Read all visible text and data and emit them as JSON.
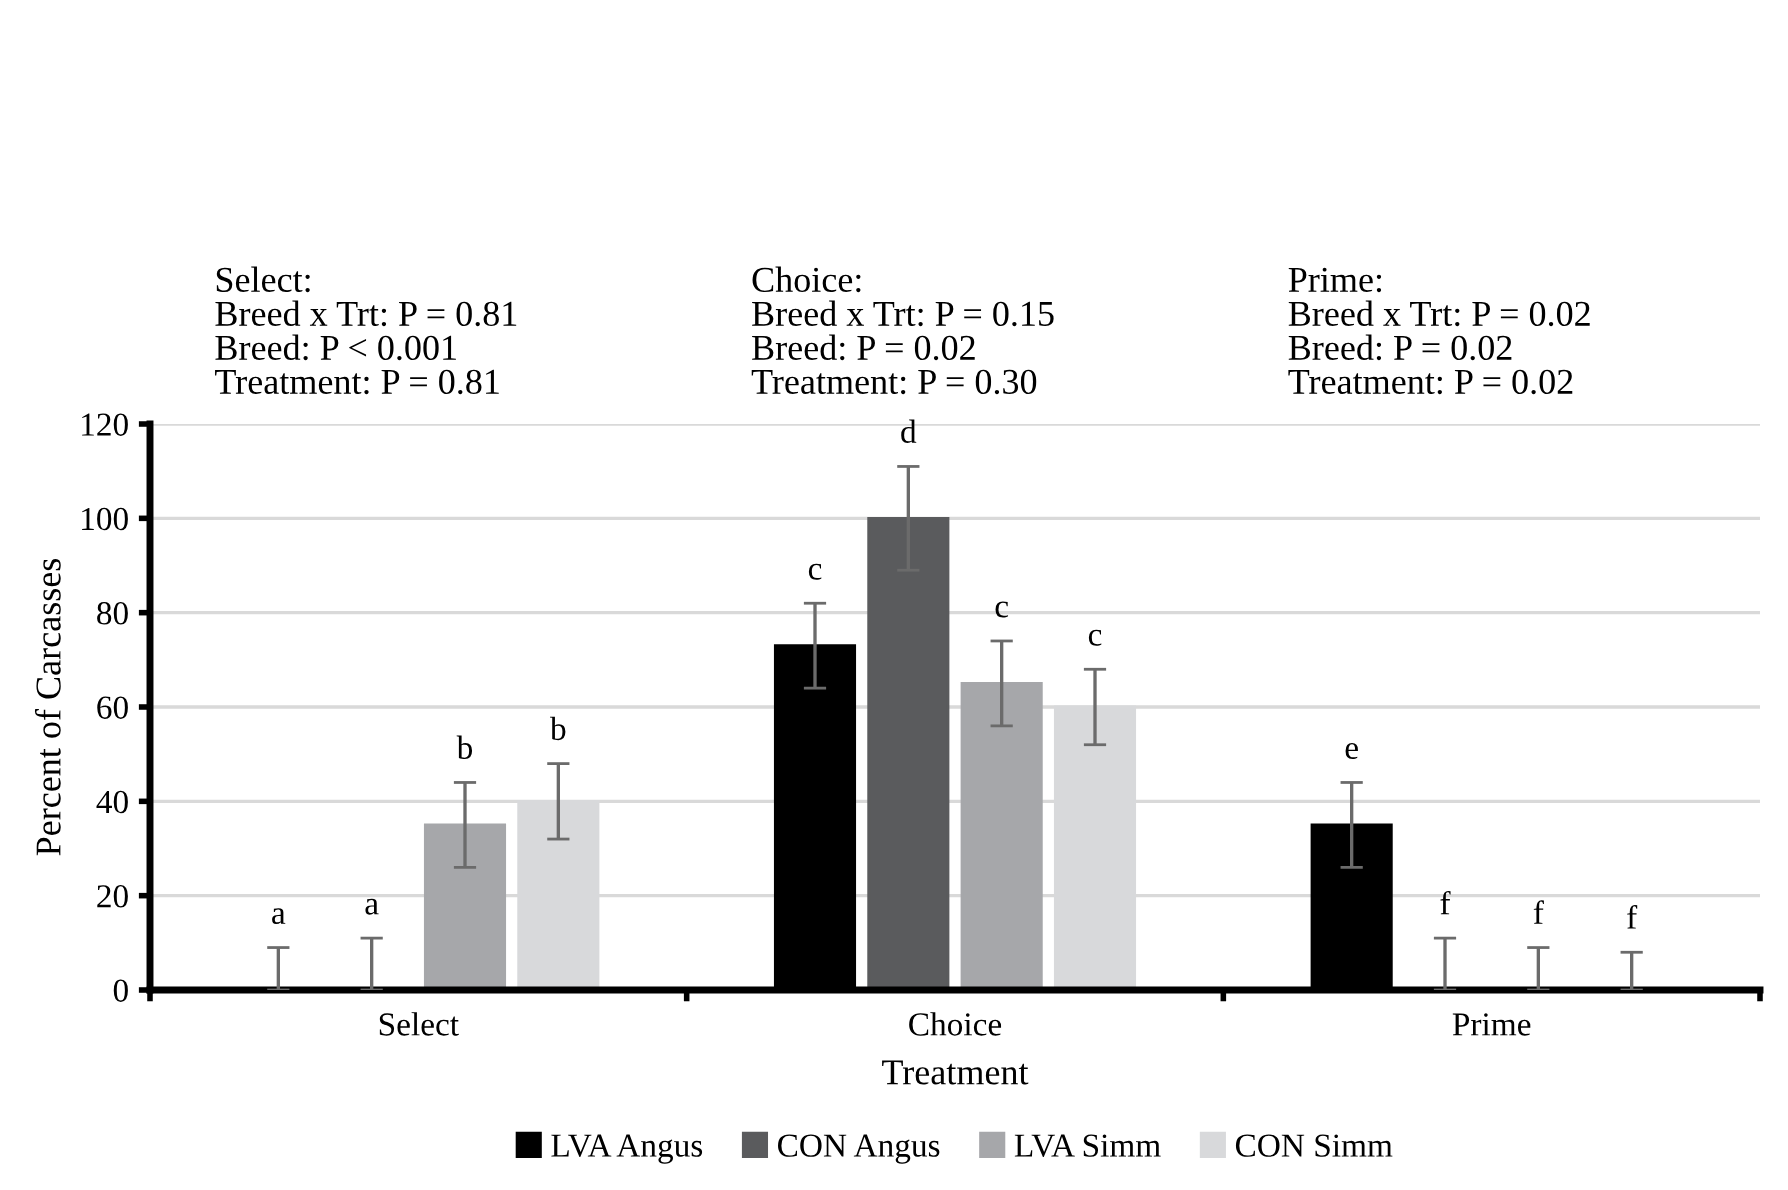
{
  "chart_data": {
    "type": "bar",
    "xlabel": "Treatment",
    "ylabel": "Percent of Carcasses",
    "categories": [
      "Select",
      "Choice",
      "Prime"
    ],
    "series": [
      {
        "name": "LVA Angus",
        "color": "#000000",
        "values": [
          0,
          73,
          35
        ],
        "errors": [
          [
            0,
            9
          ],
          9,
          9
        ],
        "value_labels": [
          "a",
          "c",
          "e"
        ]
      },
      {
        "name": "CON Angus",
        "color": "#5a5b5d",
        "values": [
          0,
          100,
          0
        ],
        "errors": [
          [
            0,
            11
          ],
          11,
          [
            0,
            11
          ]
        ],
        "value_labels": [
          "a",
          "d",
          "f"
        ]
      },
      {
        "name": "LVA Simm",
        "color": "#a6a7aa",
        "values": [
          35,
          65,
          0
        ],
        "errors": [
          9,
          9,
          [
            0,
            9
          ]
        ],
        "value_labels": [
          "b",
          "c",
          "f"
        ]
      },
      {
        "name": "CON Simm",
        "color": "#d8d9db",
        "values": [
          40,
          60,
          0
        ],
        "errors": [
          8,
          8,
          [
            0,
            8
          ]
        ],
        "value_labels": [
          "b",
          "c",
          "f"
        ]
      }
    ],
    "ylim": [
      0,
      120
    ],
    "yticks": [
      0,
      20,
      40,
      60,
      80,
      100,
      120
    ],
    "grid": "y",
    "legend": "bottom",
    "annotations": [
      "Select:\nBreed x Trt: P = 0.81\nBreed: P < 0.001\nTreatment: P = 0.81",
      "Choice:\nBreed x Trt: P = 0.15\nBreed: P = 0.02\nTreatment: P = 0.30",
      "Prime:\nBreed x Trt: P = 0.02\nBreed: P = 0.02\nTreatment: P = 0.02"
    ]
  }
}
